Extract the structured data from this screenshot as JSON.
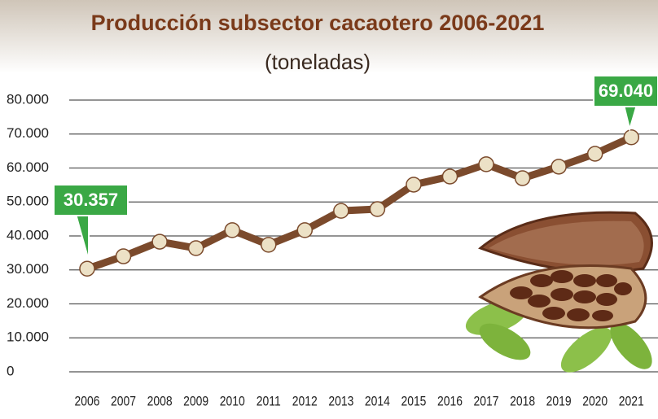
{
  "chart_data": {
    "type": "line",
    "title": "Producción subsector cacaotero 2006-2021",
    "subtitle": "(toneladas)",
    "categories": [
      "2006",
      "2007",
      "2008",
      "2009",
      "2010",
      "2011",
      "2012",
      "2013",
      "2014",
      "2015",
      "2016",
      "2017",
      "2018",
      "2019",
      "2020",
      "2021"
    ],
    "values": [
      30357,
      34000,
      38300,
      36400,
      41700,
      37400,
      41700,
      47400,
      47900,
      55100,
      57500,
      61100,
      57000,
      60400,
      64200,
      69040
    ],
    "value_labels": [
      "30.357",
      null,
      null,
      null,
      null,
      null,
      null,
      null,
      null,
      null,
      null,
      null,
      null,
      null,
      null,
      "69.040"
    ],
    "color": "#7b4a2c",
    "marker_color": "#ece1c6",
    "label_color": "#3aa845",
    "ylim": [
      0,
      80000
    ],
    "yticks": [
      0,
      {
        "value": 10000,
        "label": "10.000"
      },
      {
        "value": 20000,
        "label": "20.000"
      },
      {
        "value": 30000,
        "label": "30.000"
      },
      {
        "value": 40000,
        "label": "40.000"
      },
      {
        "value": 50000,
        "label": "50.000"
      },
      {
        "value": 60000,
        "label": "60.000"
      },
      {
        "value": 70000,
        "label": "70.000"
      },
      {
        "value": 80000,
        "label": "80.000"
      }
    ],
    "grid": true
  }
}
